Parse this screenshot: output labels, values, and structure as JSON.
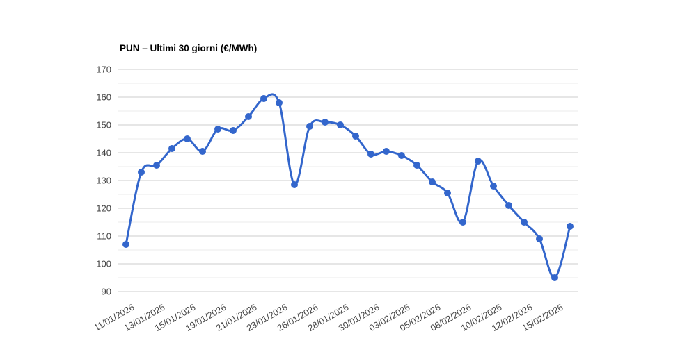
{
  "chart_data": {
    "type": "line",
    "title": "PUN – Ultimi 30 giorni (€/MWh)",
    "smooth": true,
    "legend": "none",
    "grid": {
      "major_color": "#cccccc",
      "minor_color": "#ebebeb",
      "vertical_gridlines": false
    },
    "series_color": "#3366cc",
    "marker_radius": 5,
    "line_width": 3,
    "ylim": [
      90,
      170
    ],
    "y_major_ticks": [
      90,
      100,
      110,
      120,
      130,
      140,
      150,
      160,
      170
    ],
    "y_minor_ticks": [
      95,
      105,
      115,
      125,
      135,
      145,
      155,
      165
    ],
    "x_tick_labels": [
      "11/01/2026",
      "13/01/2026",
      "15/01/2026",
      "19/01/2026",
      "21/01/2026",
      "23/01/2026",
      "26/01/2026",
      "28/01/2026",
      "30/01/2026",
      "03/02/2026",
      "05/02/2026",
      "08/02/2026",
      "10/02/2026",
      "12/02/2026",
      "15/02/2026"
    ],
    "x_tick_point_indices": [
      0,
      2,
      4,
      6,
      8,
      10,
      12,
      14,
      16,
      18,
      20,
      22,
      24,
      26,
      28
    ],
    "values": [
      107,
      133,
      135.5,
      141.5,
      145,
      140.5,
      148.5,
      148,
      153,
      159.5,
      158,
      128.5,
      149.5,
      151,
      150,
      146,
      139.5,
      140.5,
      139,
      135.5,
      129.5,
      125.5,
      115,
      137,
      128,
      121,
      115,
      109,
      95,
      113.5
    ],
    "ylabel": "",
    "xlabel": ""
  }
}
